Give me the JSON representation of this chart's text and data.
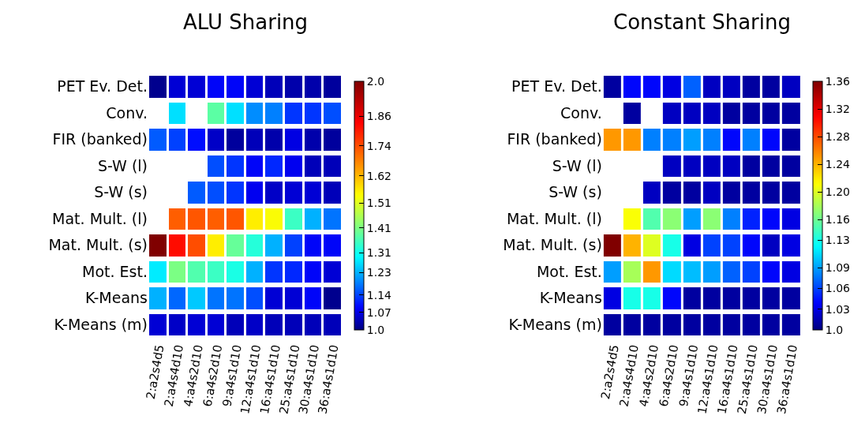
{
  "chart_data": [
    {
      "type": "heatmap",
      "title": "ALU Sharing",
      "categories": [
        "2:a2s4d5",
        "2:a4s4d10",
        "4:a4s2d10",
        "6:a4s2d10",
        "9:a4s1d10",
        "12:a4s1d10",
        "16:a4s1d10",
        "25:a4s1d10",
        "30:a4s1d10",
        "36:a4s1d10"
      ],
      "y_categories": [
        "PET Ev. Det.",
        "Conv.",
        "FIR (banked)",
        "S-W (l)",
        "S-W (s)",
        "Mat. Mult. (l)",
        "Mat. Mult. (s)",
        "Mot. Est.",
        "K-Means",
        "K-Means (m)"
      ],
      "cells": [
        [
          1.01,
          1.06,
          1.06,
          1.09,
          1.09,
          1.06,
          1.04,
          1.03,
          1.03,
          1.02
        ],
        [
          null,
          1.27,
          null,
          1.38,
          1.27,
          1.2,
          1.19,
          1.13,
          1.13,
          1.15
        ],
        [
          1.16,
          1.14,
          1.1,
          1.05,
          1.02,
          1.04,
          1.03,
          1.07,
          1.03,
          1.02
        ],
        [
          null,
          null,
          null,
          1.15,
          1.13,
          1.09,
          1.12,
          1.08,
          1.04,
          1.04
        ],
        [
          null,
          null,
          1.16,
          1.15,
          1.13,
          1.08,
          1.05,
          1.06,
          1.06,
          1.04
        ],
        [
          null,
          1.72,
          1.73,
          1.72,
          1.73,
          1.56,
          1.54,
          1.35,
          1.23,
          1.18
        ],
        [
          2.0,
          1.82,
          1.74,
          1.56,
          1.39,
          1.33,
          1.23,
          1.14,
          1.09,
          1.09
        ],
        [
          1.28,
          1.41,
          1.37,
          1.35,
          1.32,
          1.23,
          1.13,
          1.12,
          1.09,
          1.06
        ],
        [
          1.23,
          1.17,
          1.25,
          1.18,
          1.18,
          1.15,
          1.06,
          1.06,
          1.09,
          1.01
        ],
        [
          1.06,
          1.05,
          1.06,
          1.06,
          1.04,
          1.05,
          1.04,
          1.04,
          1.04,
          1.04
        ]
      ],
      "clim": [
        1.0,
        2.0
      ],
      "cticks": [
        {
          "value": 1,
          "label": "1.0"
        },
        1.07,
        1.14,
        1.23,
        1.31,
        1.41,
        1.51,
        1.62,
        1.74,
        1.86,
        {
          "value": 2,
          "label": "2.0"
        }
      ]
    },
    {
      "type": "heatmap",
      "title": "Constant Sharing",
      "categories": [
        "2:a2s4d5",
        "2:a4s4d10",
        "4:a4s2d10",
        "6:a4s2d10",
        "9:a4s1d10",
        "12:a4s1d10",
        "16:a4s1d10",
        "25:a4s1d10",
        "30:a4s1d10",
        "36:a4s1d10"
      ],
      "y_categories": [
        "PET Ev. Det.",
        "Conv.",
        "FIR (banked)",
        "S-W (l)",
        "S-W (s)",
        "Mat. Mult. (l)",
        "Mat. Mult. (s)",
        "Mot. Est.",
        "K-Means",
        "K-Means (m)"
      ],
      "cells": [
        [
          1.01,
          1.04,
          1.04,
          1.03,
          1.07,
          1.02,
          1.02,
          1.01,
          1.01,
          1.02
        ],
        [
          null,
          1.01,
          null,
          1.02,
          1.02,
          1.02,
          1.01,
          1.01,
          1.01,
          1.01
        ],
        [
          1.25,
          1.25,
          1.08,
          1.08,
          1.09,
          1.08,
          1.04,
          1.08,
          1.04,
          1.01
        ],
        [
          null,
          null,
          null,
          1.02,
          1.02,
          1.02,
          1.02,
          1.01,
          1.01,
          1.01
        ],
        [
          null,
          null,
          1.02,
          1.01,
          1.01,
          1.02,
          1.01,
          1.01,
          1.01,
          1.01
        ],
        [
          null,
          1.21,
          1.15,
          1.17,
          1.09,
          1.17,
          1.08,
          1.05,
          1.04,
          1.03
        ],
        [
          1.36,
          1.24,
          1.2,
          1.13,
          1.03,
          1.06,
          1.06,
          1.04,
          1.02,
          1.03
        ],
        [
          1.09,
          1.18,
          1.25,
          1.11,
          1.1,
          1.09,
          1.07,
          1.06,
          1.04,
          1.03
        ],
        [
          1.03,
          1.13,
          1.13,
          1.04,
          1.01,
          1.01,
          1.01,
          1.01,
          1.01,
          1.01
        ],
        [
          1.01,
          1.01,
          1.01,
          1.01,
          1.01,
          1.01,
          1.01,
          1.01,
          1.01,
          1.01
        ]
      ],
      "clim": [
        1.0,
        1.36
      ],
      "cticks": [
        {
          "value": 1,
          "label": "1.0"
        },
        1.03,
        1.06,
        1.09,
        1.13,
        1.16,
        {
          "value": 1.2,
          "label": "1.20"
        },
        1.24,
        1.28,
        1.32,
        1.36
      ]
    }
  ]
}
